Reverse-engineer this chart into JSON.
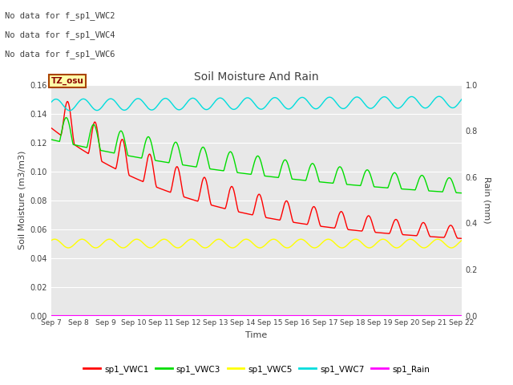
{
  "title": "Soil Moisture And Rain",
  "ylabel_left": "Soil Moisture (m3/m3)",
  "ylabel_right": "Rain (mm)",
  "xlabel": "Time",
  "ylim_left": [
    0.0,
    0.16
  ],
  "ylim_right": [
    0.0,
    1.0
  ],
  "bg_color": "#e8e8e8",
  "text_color": "#404040",
  "no_data_lines": [
    "No data for f_sp1_VWC2",
    "No data for f_sp1_VWC4",
    "No data for f_sp1_VWC6"
  ],
  "tz_label": "TZ_osu",
  "x_tick_labels": [
    "Sep 7",
    "Sep 8",
    "Sep 9",
    "Sep 10",
    "Sep 11",
    "Sep 12",
    "Sep 13",
    "Sep 14",
    "Sep 15",
    "Sep 16",
    "Sep 17",
    "Sep 18",
    "Sep 19",
    "Sep 20",
    "Sep 21",
    "Sep 22"
  ],
  "legend_entries": [
    {
      "label": "sp1_VWC1",
      "color": "#ff0000"
    },
    {
      "label": "sp1_VWC3",
      "color": "#00dd00"
    },
    {
      "label": "sp1_VWC5",
      "color": "#ffff00"
    },
    {
      "label": "sp1_VWC7",
      "color": "#00dddd"
    },
    {
      "label": "sp1_Rain",
      "color": "#ff00ff"
    }
  ],
  "series_colors": {
    "VWC1": "#ff0000",
    "VWC3": "#00dd00",
    "VWC5": "#ffff00",
    "VWC7": "#00dddd",
    "Rain": "#ff00ff"
  }
}
